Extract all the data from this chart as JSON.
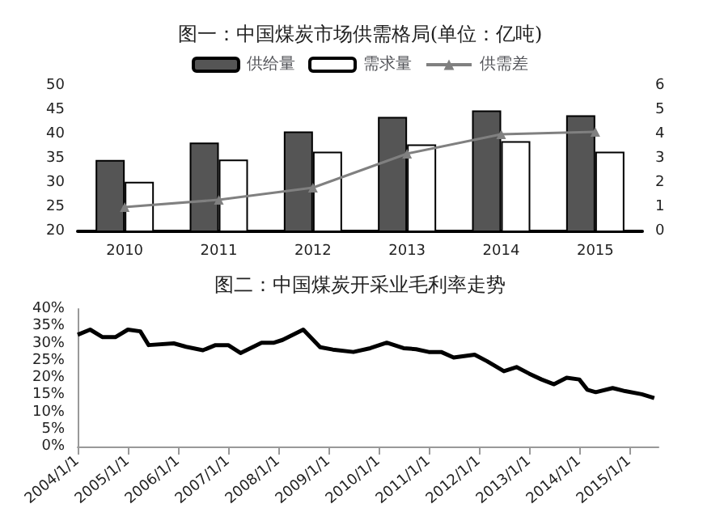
{
  "chart_data": [
    {
      "type": "bar",
      "title": "图一：中国煤炭市场供需格局(单位：亿吨)",
      "categories": [
        "2010",
        "2011",
        "2012",
        "2013",
        "2014",
        "2015"
      ],
      "legend": "top",
      "grid": false,
      "marker": "triangle",
      "ylim": [
        20,
        50
      ],
      "yticks": [
        20,
        25,
        30,
        35,
        40,
        45,
        50
      ],
      "y2lim": [
        0,
        6
      ],
      "y2ticks": [
        0,
        1,
        2,
        3,
        4,
        5,
        6
      ],
      "series": [
        {
          "name": "供给量",
          "color": "#555555",
          "values": [
            34.7,
            38.3,
            40.6,
            43.6,
            44.9,
            43.9
          ]
        },
        {
          "name": "需求量",
          "color": "#ffffff",
          "values": [
            30.2,
            34.8,
            36.4,
            37.9,
            38.6,
            36.4
          ]
        },
        {
          "name": "供需差",
          "type": "line",
          "axis": "y2",
          "color": "#808080",
          "values": [
            1.0,
            1.3,
            1.8,
            3.2,
            4.0,
            4.1
          ]
        }
      ]
    },
    {
      "type": "line",
      "title": "图二：中国煤炭开采业毛利率走势",
      "grid": false,
      "legend": false,
      "xlim": [
        "2004-01-01",
        "2015-08-01"
      ],
      "xticks": [
        {
          "value": "2004-01-01",
          "label": "2004/1/1"
        },
        {
          "value": "2005-01-01",
          "label": "2005/1/1"
        },
        {
          "value": "2006-01-01",
          "label": "2006/1/1"
        },
        {
          "value": "2007-01-01",
          "label": "2007/1/1"
        },
        {
          "value": "2008-01-01",
          "label": "2008/1/1"
        },
        {
          "value": "2009-01-01",
          "label": "2009/1/1"
        },
        {
          "value": "2010-01-01",
          "label": "2010/1/1"
        },
        {
          "value": "2011-01-01",
          "label": "2011/1/1"
        },
        {
          "value": "2012-01-01",
          "label": "2012/1/1"
        },
        {
          "value": "2013-01-01",
          "label": "2013/1/1"
        },
        {
          "value": "2014-01-01",
          "label": "2014/1/1"
        },
        {
          "value": "2015-01-01",
          "label": "2015/1/1"
        }
      ],
      "ylim": [
        0,
        40
      ],
      "yticks": [
        {
          "value": 0,
          "label": "0%"
        },
        {
          "value": 5,
          "label": "5%"
        },
        {
          "value": 10,
          "label": "10%"
        },
        {
          "value": 15,
          "label": "15%"
        },
        {
          "value": 20,
          "label": "20%"
        },
        {
          "value": 25,
          "label": "25%"
        },
        {
          "value": 30,
          "label": "30%"
        },
        {
          "value": 35,
          "label": "35%"
        },
        {
          "value": 40,
          "label": "40%"
        }
      ],
      "x": [
        "2004-01",
        "2004-04",
        "2004-07",
        "2004-10",
        "2005-01",
        "2005-04",
        "2005-06",
        "2005-12",
        "2006-03",
        "2006-07",
        "2006-10",
        "2007-01",
        "2007-04",
        "2007-09",
        "2007-12",
        "2008-02",
        "2008-07",
        "2008-11",
        "2009-02",
        "2009-07",
        "2009-11",
        "2010-03",
        "2010-07",
        "2010-10",
        "2011-01",
        "2011-04",
        "2011-07",
        "2011-12",
        "2012-03",
        "2012-07",
        "2012-10",
        "2013-01",
        "2013-04",
        "2013-07",
        "2013-10",
        "2014-01",
        "2014-03",
        "2014-05",
        "2014-09",
        "2014-12",
        "2015-04",
        "2015-07"
      ],
      "series": [
        {
          "color": "#000000",
          "values": [
            32.5,
            34,
            31.8,
            31.8,
            34,
            33.5,
            29.5,
            30,
            29,
            28,
            29.5,
            29.5,
            27.2,
            30.2,
            30.2,
            31,
            34,
            28.9,
            28.2,
            27.5,
            28.6,
            30.2,
            28.6,
            28.3,
            27.5,
            27.5,
            25.9,
            26.7,
            24.8,
            21.9,
            23.1,
            21.2,
            19.5,
            18.1,
            20,
            19.5,
            16.5,
            15.8,
            17,
            16.1,
            15.2,
            14.1
          ]
        }
      ]
    }
  ]
}
